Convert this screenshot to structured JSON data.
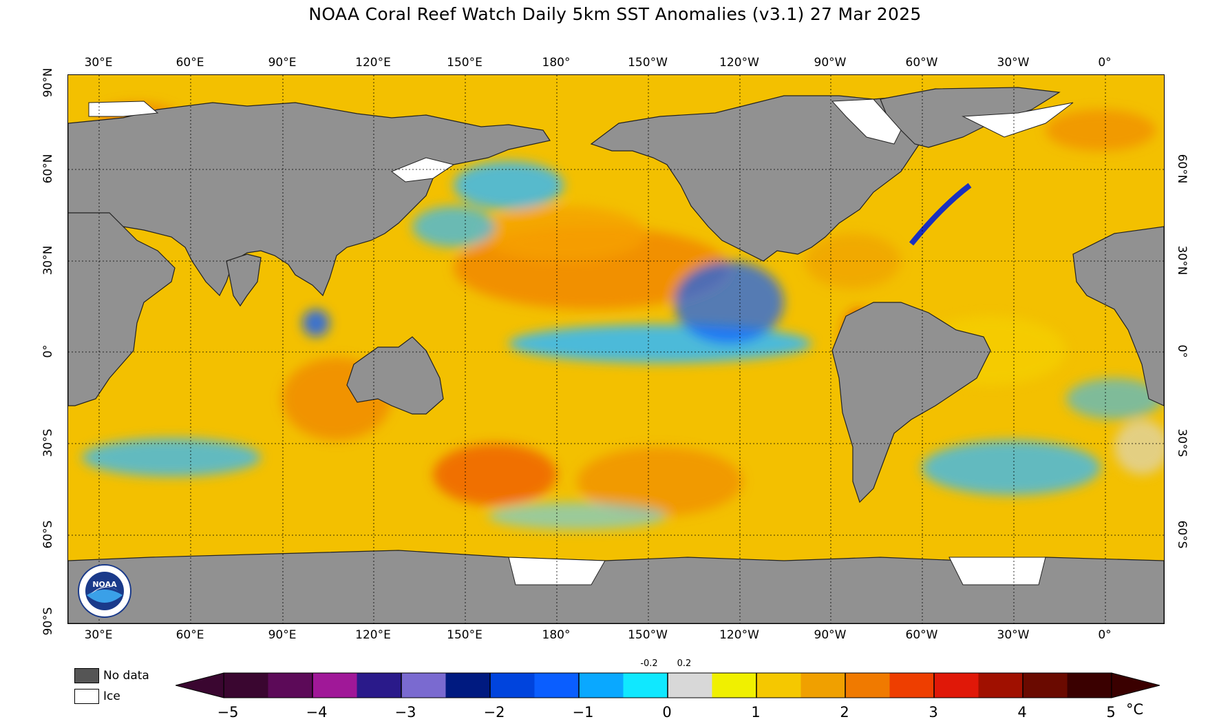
{
  "title": "NOAA Coral Reef Watch Daily 5km SST Anomalies  (v3.1)   27 Mar 2025",
  "map": {
    "lon_labels": [
      "30°E",
      "60°E",
      "90°E",
      "120°E",
      "150°E",
      "180°",
      "150°W",
      "120°W",
      "90°W",
      "60°W",
      "30°W",
      "0°"
    ],
    "lat_labels_left": [
      "90°N",
      "60°N",
      "30°N",
      "0°",
      "30°S",
      "60°S",
      "90°S"
    ],
    "lat_labels_right": [
      "60°N",
      "30°N",
      "0°",
      "30°S",
      "60°S"
    ]
  },
  "legend": {
    "nodata_label": "No data",
    "ice_label": "Ice",
    "nodata_color": "#555555",
    "ice_color": "#ffffff",
    "land_color": "#919191"
  },
  "colorbar": {
    "tick_labels": [
      "−5",
      "−4",
      "−3",
      "−2",
      "−1",
      "0",
      "1",
      "2",
      "3",
      "4",
      "5"
    ],
    "small_labels": [
      "-0.2",
      "0.2"
    ],
    "unit": "°C",
    "colors": [
      "#3a0630",
      "#5c0a58",
      "#a01898",
      "#2a1a8a",
      "#7a6ad0",
      "#001a80",
      "#0044dd",
      "#0a5eff",
      "#0aa8ff",
      "#10e8ff",
      "#d8d8d8",
      "#f0f000",
      "#f5c800",
      "#f0a000",
      "#f07a00",
      "#ee3e00",
      "#e01808",
      "#a01000",
      "#6a0a00",
      "#3a0000"
    ]
  },
  "logo": {
    "text": "NOAA"
  }
}
